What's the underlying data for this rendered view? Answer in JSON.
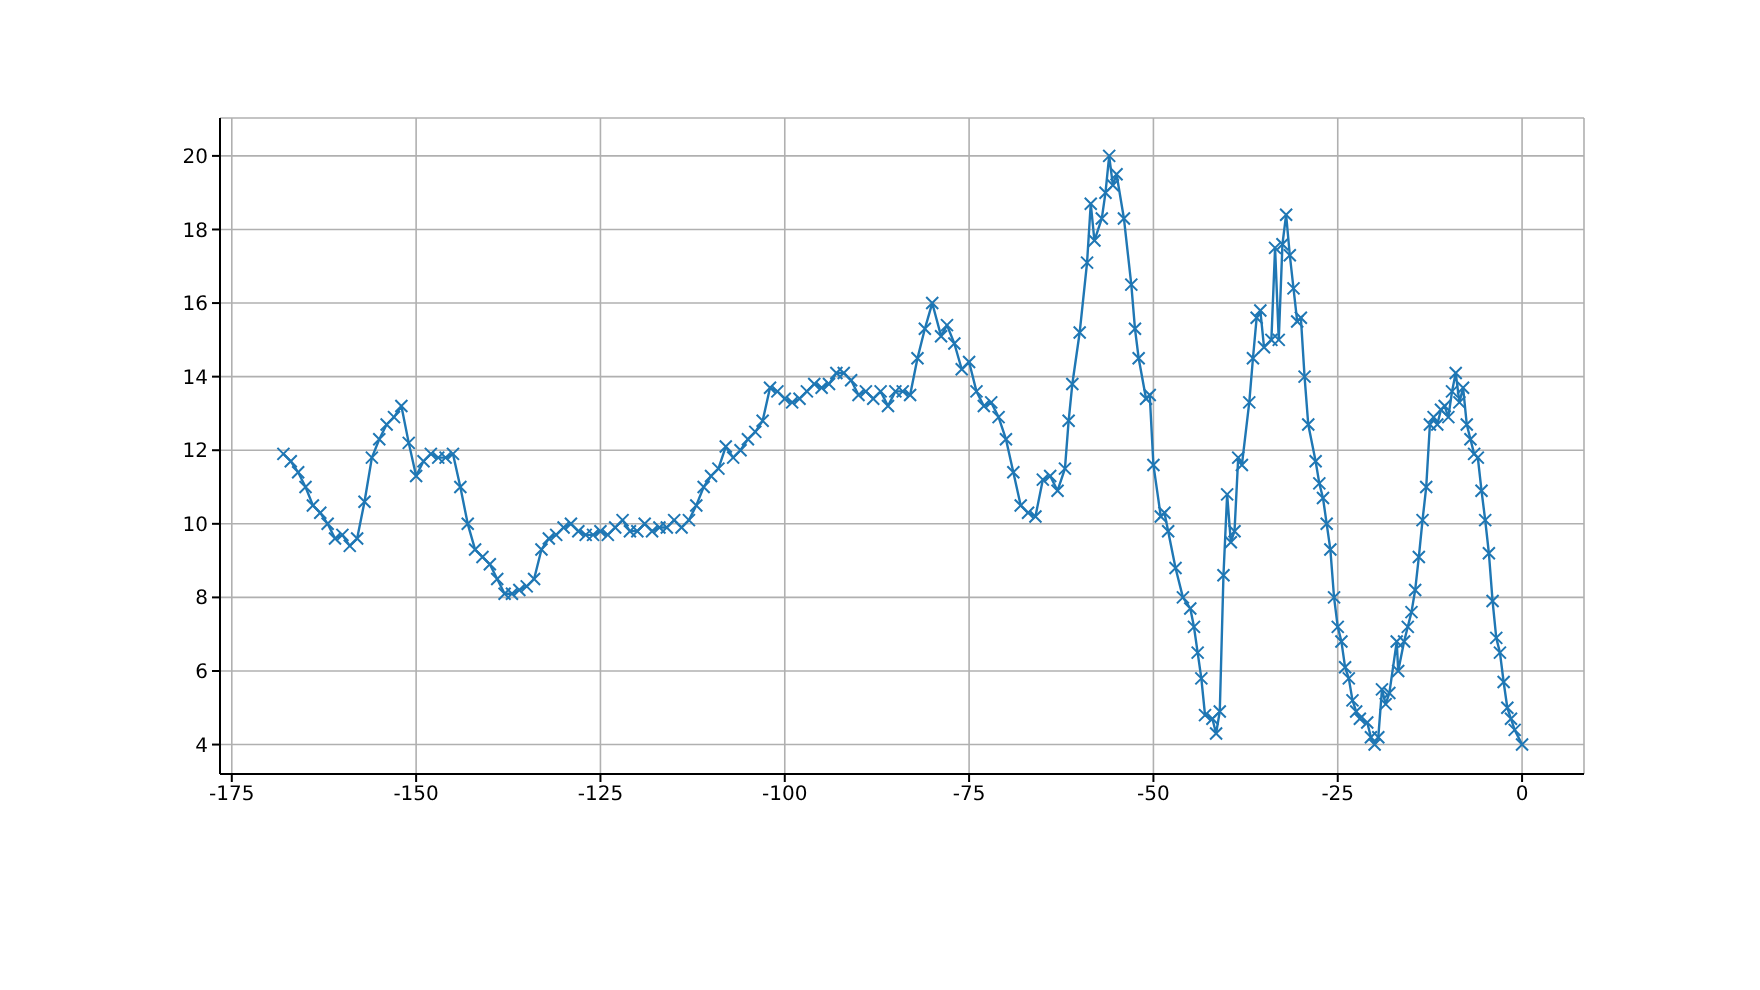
{
  "chart_data": {
    "type": "line",
    "xlim": [
      -176.6,
      8.4
    ],
    "ylim": [
      3.2,
      21.03
    ],
    "xticks": [
      -175,
      -150,
      -125,
      -100,
      -75,
      -50,
      -25,
      0
    ],
    "yticks": [
      4,
      6,
      8,
      10,
      12,
      14,
      16,
      18,
      20
    ],
    "grid": true,
    "marker": "cross",
    "line_style": "solid",
    "series": [
      {
        "color": "#1f77b4",
        "x": [
          -168,
          -167,
          -166,
          -165,
          -164,
          -163,
          -162,
          -161,
          -160,
          -159,
          -158,
          -157,
          -156,
          -155,
          -154,
          -153,
          -152,
          -151,
          -150,
          -149,
          -148,
          -147,
          -146,
          -145,
          -144,
          -143,
          -142,
          -141,
          -140,
          -139,
          -138,
          -137,
          -136,
          -135,
          -134,
          -133,
          -132,
          -131,
          -130,
          -129,
          -128,
          -127,
          -126,
          -125,
          -124,
          -123,
          -122,
          -121,
          -120,
          -119,
          -118,
          -117,
          -116,
          -115,
          -114,
          -113,
          -112,
          -111,
          -110,
          -109,
          -108,
          -107,
          -106,
          -105,
          -104,
          -103,
          -102,
          -101,
          -100,
          -99,
          -98,
          -97,
          -96,
          -95,
          -94,
          -93,
          -92,
          -91,
          -90,
          -89,
          -88,
          -87,
          -86,
          -85,
          -84,
          -83,
          -82,
          -81,
          -80,
          -78.8,
          -78,
          -77,
          -76,
          -75,
          -74,
          -73,
          -72,
          -71,
          -70,
          -69,
          -68,
          -67,
          -66,
          -65,
          -64,
          -63,
          -62,
          -61.5,
          -61,
          -60,
          -59,
          -58.5,
          -58,
          -57,
          -56.5,
          -56,
          -55.5,
          -55,
          -54,
          -53,
          -52.5,
          -52,
          -51,
          -50.5,
          -50,
          -49,
          -48.5,
          -48,
          -47,
          -46,
          -45,
          -44.5,
          -44,
          -43.5,
          -43,
          -42,
          -41.5,
          -41,
          -40.5,
          -40,
          -39.5,
          -39,
          -38.5,
          -38,
          -37,
          -36.5,
          -36,
          -35.5,
          -35,
          -34,
          -33.5,
          -33,
          -32.5,
          -32,
          -31.5,
          -31,
          -30.5,
          -30,
          -29.5,
          -29,
          -28,
          -27.5,
          -27,
          -26.5,
          -26,
          -25.5,
          -25,
          -24.5,
          -24,
          -23.5,
          -23,
          -22.5,
          -22,
          -21,
          -20.5,
          -20,
          -19.5,
          -19,
          -18.5,
          -18,
          -17,
          -16.8,
          -16,
          -15.5,
          -15,
          -14.5,
          -14,
          -13.5,
          -13,
          -12.5,
          -12,
          -11.5,
          -11,
          -10.5,
          -10,
          -9.5,
          -9,
          -8.5,
          -8,
          -7.5,
          -7,
          -6.5,
          -6,
          -5.5,
          -5,
          -4.5,
          -4,
          -3.5,
          -3,
          -2.5,
          -2,
          -1.5,
          -1,
          0
        ],
        "values": [
          11.9,
          11.7,
          11.4,
          11.0,
          10.5,
          10.3,
          10.0,
          9.6,
          9.7,
          9.4,
          9.6,
          10.6,
          11.8,
          12.3,
          12.7,
          12.9,
          13.2,
          12.2,
          11.3,
          11.7,
          11.9,
          11.8,
          11.8,
          11.9,
          11.0,
          10.0,
          9.3,
          9.1,
          8.9,
          8.5,
          8.1,
          8.1,
          8.2,
          8.3,
          8.5,
          9.3,
          9.6,
          9.7,
          9.9,
          10.0,
          9.8,
          9.7,
          9.7,
          9.8,
          9.7,
          9.9,
          10.1,
          9.8,
          9.8,
          10.0,
          9.8,
          9.9,
          9.9,
          10.1,
          9.9,
          10.1,
          10.5,
          11.0,
          11.3,
          11.5,
          12.1,
          11.8,
          12.0,
          12.3,
          12.5,
          12.8,
          13.7,
          13.6,
          13.4,
          13.3,
          13.4,
          13.6,
          13.8,
          13.7,
          13.8,
          14.1,
          14.1,
          13.9,
          13.5,
          13.6,
          13.4,
          13.6,
          13.2,
          13.6,
          13.6,
          13.5,
          14.5,
          15.3,
          16.0,
          15.1,
          15.4,
          14.9,
          14.2,
          14.4,
          13.6,
          13.2,
          13.3,
          12.9,
          12.3,
          11.4,
          10.5,
          10.3,
          10.2,
          11.2,
          11.3,
          10.9,
          11.5,
          12.8,
          13.8,
          15.2,
          17.1,
          18.7,
          17.7,
          18.3,
          19.0,
          20.0,
          19.2,
          19.5,
          18.3,
          16.5,
          15.3,
          14.5,
          13.4,
          13.5,
          11.6,
          10.2,
          10.3,
          9.8,
          8.8,
          8.0,
          7.7,
          7.2,
          6.5,
          5.8,
          4.8,
          4.7,
          4.3,
          4.9,
          8.6,
          10.8,
          9.5,
          9.8,
          11.8,
          11.6,
          13.3,
          14.5,
          15.6,
          15.8,
          14.8,
          15.0,
          17.5,
          15.0,
          17.6,
          18.4,
          17.3,
          16.4,
          15.5,
          15.6,
          14.0,
          12.7,
          11.7,
          11.1,
          10.7,
          10.0,
          9.3,
          8.0,
          7.2,
          6.8,
          6.1,
          5.8,
          5.2,
          4.9,
          4.7,
          4.6,
          4.2,
          4.0,
          4.2,
          5.5,
          5.1,
          5.4,
          6.8,
          6.0,
          6.8,
          7.2,
          7.6,
          8.2,
          9.1,
          10.1,
          11.0,
          12.7,
          12.9,
          12.7,
          13.1,
          13.2,
          12.9,
          13.6,
          14.1,
          13.3,
          13.7,
          12.7,
          12.3,
          11.9,
          11.8,
          10.9,
          10.1,
          9.2,
          7.9,
          6.9,
          6.5,
          5.7,
          5.0,
          4.7,
          4.4,
          4.0
        ]
      }
    ]
  }
}
